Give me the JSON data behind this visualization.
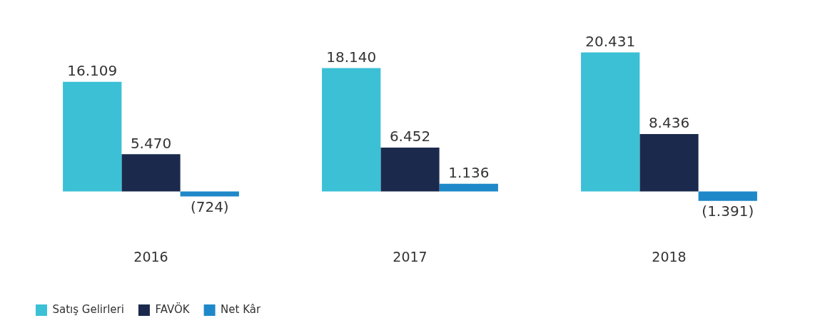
{
  "chart_data": {
    "type": "bar",
    "categories": [
      "2016",
      "2017",
      "2018"
    ],
    "series": [
      {
        "name": "Satış Gelirleri",
        "color": "#3bc0d6",
        "values": [
          16109,
          18140,
          20431
        ],
        "value_labels": [
          "16.109",
          "18.140",
          "20.431"
        ]
      },
      {
        "name": "FAVÖK",
        "color": "#1b2a4c",
        "values": [
          5470,
          6452,
          8436
        ],
        "value_labels": [
          "5.470",
          "6.452",
          "8.436"
        ]
      },
      {
        "name": "Net Kâr",
        "color": "#1f88c9",
        "values": [
          -724,
          1136,
          -1391
        ],
        "value_labels": [
          "(724)",
          "1.136",
          "(1.391)"
        ]
      }
    ],
    "legend": "bottom left",
    "grid": false
  }
}
